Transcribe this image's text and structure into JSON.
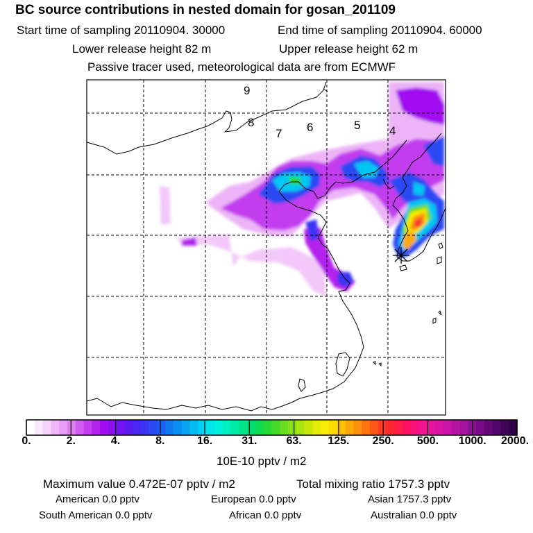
{
  "header": {
    "title": "BC  source contributions in nested domain for gosan_201109",
    "start_label": "Start time of sampling 20110904. 30000",
    "end_label": "End time of sampling 20110904. 60000",
    "lower_label": "Lower release height   82 m",
    "upper_label": "Upper release height   62 m",
    "tracer_label": "Passive tracer used, meteorological data are from ECMWF"
  },
  "chart_data": {
    "type": "heatmap",
    "title": "BC  source contributions in nested domain for gosan_201109",
    "map_labels": [
      "9",
      "8",
      "7",
      "6",
      "5",
      "4"
    ],
    "colorbar": {
      "tick_labels": [
        "0.",
        "2.",
        "4.",
        "8.",
        "16.",
        "31.",
        "63.",
        "125.",
        "250.",
        "500.",
        "1000.",
        "2000."
      ],
      "unit": "10E-10 pptv / m2",
      "colors": [
        "#ffffff",
        "#fbe9fd",
        "#f6d3fb",
        "#efb7f8",
        "#e89cf5",
        "#df7ff2",
        "#d05ef0",
        "#c23eee",
        "#b323ee",
        "#a10ff0",
        "#8a10f0",
        "#7214f2",
        "#5a1af2",
        "#4a26f2",
        "#3a35f2",
        "#2a4af2",
        "#1d62f2",
        "#1278f2",
        "#0b8ef2",
        "#08a4f2",
        "#05baf2",
        "#03d0f0",
        "#02e4ea",
        "#00f2dc",
        "#00f0c0",
        "#00eba6",
        "#00e58c",
        "#00dc6e",
        "#10d850",
        "#28d838",
        "#48d828",
        "#68dc20",
        "#88e018",
        "#a8e412",
        "#c8e80c",
        "#e4ec08",
        "#f8ec04",
        "#fcd804",
        "#fcc004",
        "#fca808",
        "#fc900c",
        "#fc7410",
        "#fc5818",
        "#fc3c20",
        "#fc2830",
        "#fc1c48",
        "#fc1060",
        "#f8107c",
        "#f01490",
        "#e4149c",
        "#d814a4",
        "#c814a8",
        "#b414a4",
        "#a0149c",
        "#8c1094",
        "#780c88",
        "#640878",
        "#50066a",
        "#400458",
        "#300048"
      ]
    },
    "release_site": "asterisk",
    "grid": true
  },
  "footer": {
    "max_label": "Maximum value  0.472E-07 pptv / m2",
    "total_label": "Total mixing ratio     1757.3 pptv",
    "american": "American          0.0 pptv",
    "european": "European          0.0 pptv",
    "asian": "Asian      1757.3 pptv",
    "south_american": "South American          0.0 pptv",
    "african": "African          0.0 pptv",
    "australian": "Australian          0.0 pptv"
  }
}
